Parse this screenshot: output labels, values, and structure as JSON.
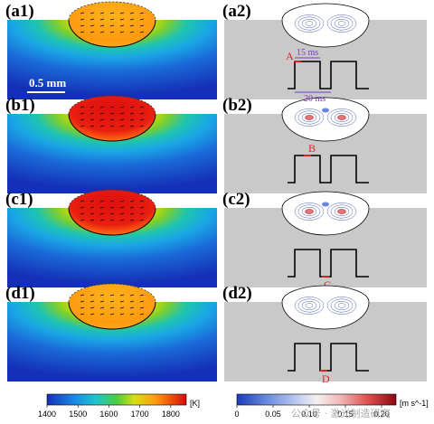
{
  "panels_left": [
    {
      "label": "(a1)",
      "pool": "mid"
    },
    {
      "label": "(b1)",
      "pool": "hot"
    },
    {
      "label": "(c1)",
      "pool": "hot"
    },
    {
      "label": "(d1)",
      "pool": "mid"
    }
  ],
  "panels_right": [
    {
      "label": "(a2)",
      "marker": "A",
      "marker_pos": "rise_top"
    },
    {
      "label": "(b2)",
      "marker": "B",
      "marker_pos": "top_mid"
    },
    {
      "label": "(c2)",
      "marker": "C",
      "marker_pos": "bottom"
    },
    {
      "label": "(d2)",
      "marker": "D",
      "marker_pos": "bottom_mid"
    }
  ],
  "scale_bar_label": "0.5 mm",
  "pulse_annotations": {
    "on_time": "15 ms",
    "period": "20 ms"
  },
  "colorbar_temperature": {
    "ticks": [
      "1400",
      "1500",
      "1600",
      "1700",
      "1800"
    ],
    "unit": "[K]",
    "range": [
      1400,
      1850
    ]
  },
  "colorbar_velocity": {
    "ticks": [
      "0",
      "0.05",
      "0.10",
      "0.15",
      "0.20"
    ],
    "unit": "[m s^-1]",
    "range": [
      0,
      0.22
    ]
  },
  "watermark": "公众号 · 激光制造研究",
  "colors": {
    "substrate_gray": "#c9c9c9",
    "marker_red": "#e02020",
    "dimension_purple": "#7a3cc0"
  }
}
